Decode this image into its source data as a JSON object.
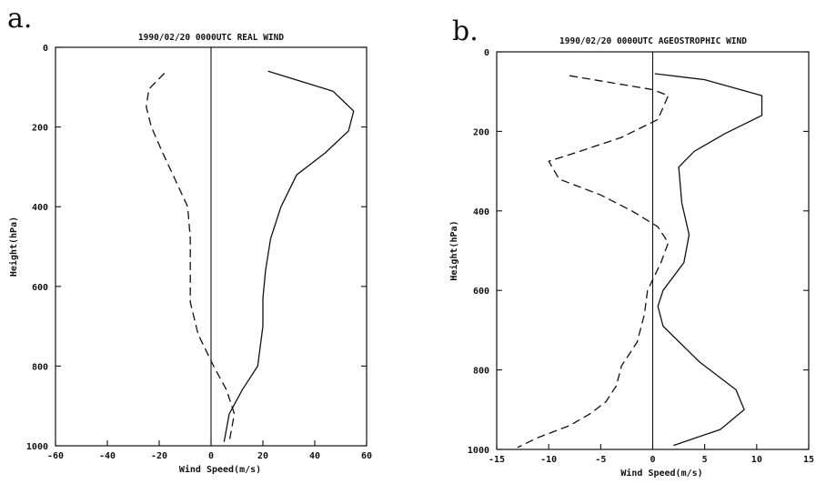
{
  "chart_data": [
    {
      "type": "line",
      "panel_label": "a.",
      "title": "1990/02/20 0000UTC REAL WIND",
      "xlabel": "Wind Speed(m/s)",
      "ylabel": "Height(hPa)",
      "xlim": [
        -60,
        60
      ],
      "ylim": [
        1000,
        0
      ],
      "xticks": [
        "-60",
        "-40",
        "-20",
        "0",
        "20",
        "40",
        "60"
      ],
      "yticks": [
        "0",
        "200",
        "400",
        "600",
        "800",
        "1000"
      ],
      "series": [
        {
          "style": "solid",
          "points": [
            [
              22,
              60
            ],
            [
              47,
              110
            ],
            [
              55,
              160
            ],
            [
              53,
              210
            ],
            [
              44,
              265
            ],
            [
              33,
              320
            ],
            [
              27,
              400
            ],
            [
              23,
              480
            ],
            [
              21,
              560
            ],
            [
              20,
              630
            ],
            [
              20,
              700
            ],
            [
              18,
              800
            ],
            [
              12,
              860
            ],
            [
              7,
              920
            ],
            [
              5,
              990
            ]
          ]
        },
        {
          "style": "dashed",
          "points": [
            [
              -18,
              65
            ],
            [
              -24,
              105
            ],
            [
              -25,
              150
            ],
            [
              -23,
              200
            ],
            [
              -19,
              260
            ],
            [
              -14,
              330
            ],
            [
              -9,
              400
            ],
            [
              -8,
              480
            ],
            [
              -8,
              560
            ],
            [
              -8,
              640
            ],
            [
              -5,
              720
            ],
            [
              1,
              800
            ],
            [
              6,
              860
            ],
            [
              9,
              920
            ],
            [
              7,
              990
            ]
          ]
        }
      ]
    },
    {
      "type": "line",
      "panel_label": "b.",
      "title": "1990/02/20 0000UTC AGEOSTROPHIC WIND",
      "xlabel": "Wind Speed(m/s)",
      "ylabel": "Height(hPa)",
      "xlim": [
        -15,
        15
      ],
      "ylim": [
        1000,
        0
      ],
      "xticks": [
        "-15",
        "-10",
        "-5",
        "0",
        "5",
        "10",
        "15"
      ],
      "yticks": [
        "0",
        "200",
        "400",
        "600",
        "800",
        "1000"
      ],
      "series": [
        {
          "style": "solid",
          "points": [
            [
              0.2,
              55
            ],
            [
              5,
              70
            ],
            [
              10.5,
              110
            ],
            [
              10.5,
              160
            ],
            [
              7,
              205
            ],
            [
              4,
              250
            ],
            [
              2.5,
              290
            ],
            [
              2.8,
              380
            ],
            [
              3.5,
              460
            ],
            [
              3,
              530
            ],
            [
              1,
              600
            ],
            [
              0.5,
              640
            ],
            [
              1,
              690
            ],
            [
              4.5,
              780
            ],
            [
              8,
              850
            ],
            [
              8.8,
              900
            ],
            [
              6.5,
              950
            ],
            [
              2,
              990
            ]
          ]
        },
        {
          "style": "dashed",
          "points": [
            [
              -8,
              60
            ],
            [
              0,
              95
            ],
            [
              1.5,
              110
            ],
            [
              0.5,
              170
            ],
            [
              -3,
              215
            ],
            [
              -7,
              250
            ],
            [
              -10,
              275
            ],
            [
              -9,
              320
            ],
            [
              -5,
              360
            ],
            [
              -2,
              400
            ],
            [
              0.5,
              440
            ],
            [
              1.5,
              480
            ],
            [
              0.8,
              530
            ],
            [
              -0.5,
              600
            ],
            [
              -0.8,
              660
            ],
            [
              -1.5,
              730
            ],
            [
              -3,
              790
            ],
            [
              -3.5,
              840
            ],
            [
              -4.5,
              880
            ],
            [
              -6,
              910
            ],
            [
              -8,
              940
            ],
            [
              -11,
              970
            ],
            [
              -13,
              995
            ]
          ]
        }
      ]
    }
  ]
}
